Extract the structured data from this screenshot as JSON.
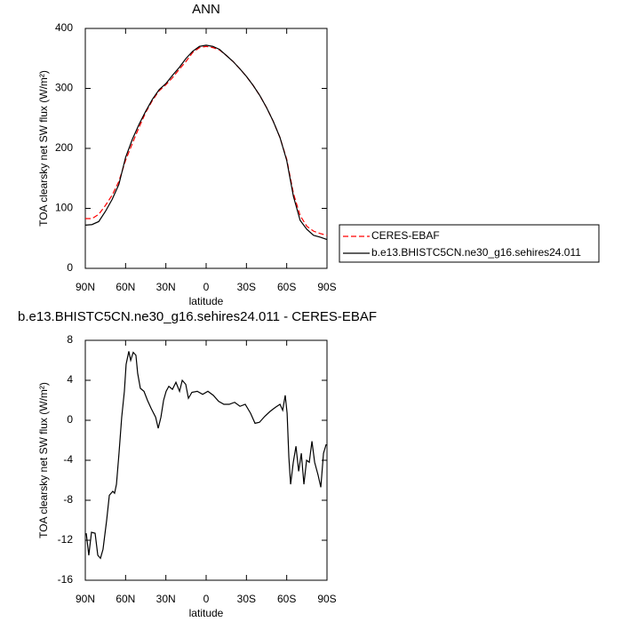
{
  "chart_data": [
    {
      "type": "line",
      "title": "ANN",
      "xlabel": "latitude",
      "ylabel": "TOA clearsky net SW flux (W/m²)",
      "x": [
        90,
        85,
        80,
        75,
        70,
        65,
        60,
        55,
        50,
        45,
        40,
        35,
        30,
        25,
        20,
        15,
        10,
        5,
        0,
        -5,
        -10,
        -15,
        -20,
        -25,
        -30,
        -35,
        -40,
        -45,
        -50,
        -55,
        -60,
        -65,
        -70,
        -75,
        -80,
        -85,
        -90
      ],
      "series": [
        {
          "name": "CERES-EBAF",
          "color": "#ff0000",
          "line_style": "dashed",
          "values": [
            83,
            83,
            90,
            105,
            122,
            145,
            180,
            208,
            235,
            260,
            280,
            296,
            306,
            318,
            332,
            345,
            360,
            368,
            370,
            368,
            364,
            355,
            345,
            333,
            320,
            305,
            288,
            268,
            245,
            218,
            182,
            125,
            88,
            70,
            62,
            58,
            55
          ]
        },
        {
          "name": "b.e13.BHISTC5CN.ne30_g16.sehires24.011",
          "color": "#000000",
          "line_style": "solid",
          "values": [
            72,
            73,
            78,
            95,
            115,
            140,
            185,
            215,
            240,
            262,
            282,
            298,
            308,
            322,
            335,
            350,
            362,
            370,
            372,
            370,
            365,
            355,
            345,
            333,
            320,
            305,
            288,
            268,
            245,
            218,
            180,
            120,
            80,
            65,
            55,
            52,
            48
          ]
        }
      ],
      "xlim": [
        90,
        -90
      ],
      "xticks": [
        {
          "value": 90,
          "label": "90N"
        },
        {
          "value": 60,
          "label": "60N"
        },
        {
          "value": 30,
          "label": "30N"
        },
        0,
        {
          "value": -30,
          "label": "30S"
        },
        {
          "value": -60,
          "label": "60S"
        },
        {
          "value": -90,
          "label": "90S"
        }
      ],
      "ylim": [
        0,
        400
      ],
      "yticks": [
        0,
        100,
        200,
        300,
        400
      ],
      "legend": "outside-right"
    },
    {
      "type": "line",
      "title": "b.e13.BHISTC5CN.ne30_g16.sehires24.011 - CERES-EBAF",
      "xlabel": "latitude",
      "ylabel": "TOA clearsky net SW flux (W/m²)",
      "x": [
        89.3,
        87.4,
        85.4,
        82.7,
        80.7,
        78.7,
        76.8,
        74.1,
        72.1,
        69.5,
        68.2,
        66.8,
        64.9,
        62.9,
        60.9,
        59.6,
        57.6,
        56.2,
        54.3,
        52.3,
        51,
        49,
        46.3,
        43.7,
        41,
        37.6,
        35.7,
        33.7,
        31.7,
        29.8,
        27.8,
        25.1,
        22.5,
        19.8,
        17.8,
        15.2,
        13.2,
        10.6,
        6.6,
        2.6,
        -1.3,
        -5.3,
        -9.3,
        -13.2,
        -17.2,
        -21.2,
        -25.2,
        -29.1,
        -33.1,
        -36.4,
        -39.7,
        -43.7,
        -47.7,
        -51.6,
        -55,
        -57,
        -58.9,
        -60.3,
        -61.6,
        -62.9,
        -64.9,
        -66.9,
        -68.9,
        -70.9,
        -72.8,
        -74.8,
        -76.8,
        -78.8,
        -80.8,
        -83.4,
        -85.4,
        -87.4,
        -89.4
      ],
      "values": [
        -11.3,
        -13.5,
        -11.2,
        -11.3,
        -13.5,
        -13.8,
        -12.9,
        -10,
        -7.5,
        -7.1,
        -7.3,
        -6.4,
        -3.3,
        0.3,
        2.9,
        5.6,
        6.9,
        6,
        6.8,
        6.5,
        4.7,
        3.2,
        2.9,
        2,
        1.2,
        0.3,
        -0.8,
        0.3,
        2,
        2.9,
        3.4,
        3.1,
        3.8,
        2.9,
        4,
        3.6,
        2.2,
        2.8,
        2.9,
        2.6,
        2.9,
        2.5,
        1.9,
        1.6,
        1.6,
        1.8,
        1.4,
        1.6,
        0.7,
        -0.3,
        -0.2,
        0.4,
        0.9,
        1.3,
        1.6,
        1,
        2.5,
        0.7,
        -3.7,
        -6.4,
        -4.2,
        -2.6,
        -5.1,
        -3.3,
        -6.4,
        -4,
        -4.2,
        -2.1,
        -4.2,
        -5.5,
        -6.7,
        -3.3,
        -2.4
      ],
      "color": "#000000",
      "xlim": [
        90,
        -90
      ],
      "xticks": [
        {
          "value": 90,
          "label": "90N"
        },
        {
          "value": 60,
          "label": "60N"
        },
        {
          "value": 30,
          "label": "30N"
        },
        0,
        {
          "value": -30,
          "label": "30S"
        },
        {
          "value": -60,
          "label": "60S"
        },
        {
          "value": -90,
          "label": "90S"
        }
      ],
      "ylim": [
        -16,
        8
      ],
      "yticks": [
        8,
        4,
        0,
        -4,
        -8,
        -12,
        -16
      ]
    }
  ]
}
